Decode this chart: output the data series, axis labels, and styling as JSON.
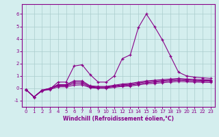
{
  "x": [
    0,
    1,
    2,
    3,
    4,
    5,
    6,
    7,
    8,
    9,
    10,
    11,
    12,
    13,
    14,
    15,
    16,
    17,
    18,
    19,
    20,
    21,
    22,
    23
  ],
  "line1": [
    -0.1,
    -0.7,
    -0.2,
    -0.05,
    0.5,
    0.5,
    1.8,
    1.9,
    1.1,
    0.5,
    0.5,
    1.0,
    2.4,
    2.7,
    4.9,
    6.0,
    5.0,
    3.9,
    2.6,
    1.3,
    1.0,
    0.9,
    0.85,
    0.8
  ],
  "line2": [
    -0.1,
    -0.7,
    -0.15,
    0.0,
    0.3,
    0.3,
    0.6,
    0.6,
    0.2,
    0.15,
    0.15,
    0.25,
    0.35,
    0.4,
    0.5,
    0.6,
    0.65,
    0.7,
    0.75,
    0.8,
    0.75,
    0.72,
    0.7,
    0.68
  ],
  "line3": [
    -0.1,
    -0.7,
    -0.15,
    0.0,
    0.25,
    0.25,
    0.5,
    0.5,
    0.15,
    0.1,
    0.1,
    0.2,
    0.28,
    0.32,
    0.42,
    0.52,
    0.57,
    0.62,
    0.67,
    0.72,
    0.68,
    0.65,
    0.63,
    0.62
  ],
  "line4": [
    -0.1,
    -0.7,
    -0.18,
    -0.05,
    0.2,
    0.2,
    0.38,
    0.4,
    0.1,
    0.05,
    0.05,
    0.15,
    0.22,
    0.26,
    0.35,
    0.45,
    0.5,
    0.55,
    0.6,
    0.65,
    0.62,
    0.59,
    0.57,
    0.56
  ],
  "line5": [
    -0.1,
    -0.7,
    -0.2,
    -0.1,
    0.12,
    0.12,
    0.25,
    0.28,
    0.05,
    0.0,
    0.0,
    0.08,
    0.15,
    0.18,
    0.27,
    0.36,
    0.4,
    0.45,
    0.5,
    0.55,
    0.52,
    0.5,
    0.48,
    0.47
  ],
  "color": "#880088",
  "bg_color": "#d4eeee",
  "grid_color": "#aacccc",
  "xlabel": "Windchill (Refroidissement éolien,°C)",
  "ylim": [
    -1.5,
    6.8
  ],
  "xlim": [
    -0.5,
    23.5
  ],
  "yticks": [
    -1,
    0,
    1,
    2,
    3,
    4,
    5,
    6
  ],
  "xticks": [
    0,
    1,
    2,
    3,
    4,
    5,
    6,
    7,
    8,
    9,
    10,
    11,
    12,
    13,
    14,
    15,
    16,
    17,
    18,
    19,
    20,
    21,
    22,
    23
  ]
}
